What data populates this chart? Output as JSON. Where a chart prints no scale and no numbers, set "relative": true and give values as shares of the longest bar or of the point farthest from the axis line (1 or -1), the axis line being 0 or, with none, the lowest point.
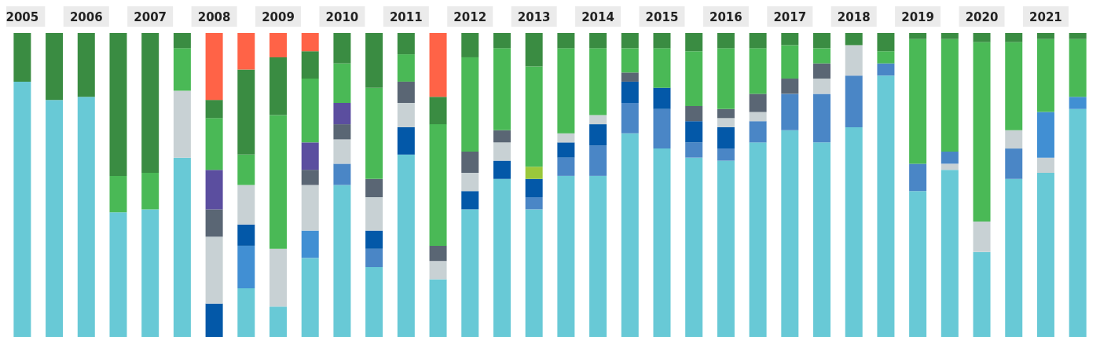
{
  "chart_data": {
    "type": "bar",
    "stacked": true,
    "relative": true,
    "categories": [
      "2005",
      null,
      "2006",
      null,
      "2007",
      null,
      "2008",
      null,
      "2009",
      null,
      "2010",
      null,
      "2011",
      null,
      "2012",
      null,
      "2013",
      null,
      "2014",
      null,
      "2015",
      null,
      "2016",
      null,
      "2017",
      null,
      "2018",
      null,
      "2019",
      null,
      "2020",
      null,
      "2021",
      null
    ],
    "series": [
      {
        "color": "#68c9d6",
        "values": [
          0.84,
          0.78,
          0.79,
          0.41,
          0.42,
          0.59,
          null,
          0.16,
          0.1,
          0.26,
          0.5,
          0.23,
          0.6,
          0.19,
          0.42,
          0.52,
          0.42,
          0.53,
          0.53,
          0.67,
          0.62,
          0.59,
          0.58,
          0.64,
          0.68,
          0.64,
          0.69,
          0.86,
          0.48,
          0.55,
          0.28,
          0.52,
          0.54,
          0.75
        ]
      },
      {
        "color": "#c8d1d4",
        "values": [
          null,
          null,
          null,
          null,
          null,
          null,
          null,
          null,
          null,
          null,
          null,
          null,
          null,
          null,
          null,
          null,
          null,
          null,
          null,
          null,
          null,
          null,
          null,
          null,
          null,
          null,
          null,
          null,
          null,
          0.02,
          null,
          null,
          0.05,
          null
        ]
      },
      {
        "color": "#418fd3",
        "values": [
          null,
          null,
          null,
          null,
          null,
          null,
          null,
          0.14,
          null,
          0.09,
          null,
          null,
          null,
          null,
          null,
          null,
          null,
          null,
          null,
          null,
          null,
          null,
          null,
          null,
          null,
          null,
          null,
          null,
          null,
          null,
          null,
          null,
          0.15,
          0.04
        ]
      },
      {
        "color": "#4a86c6",
        "values": [
          null,
          null,
          null,
          null,
          null,
          null,
          null,
          null,
          null,
          null,
          0.07,
          0.06,
          null,
          null,
          null,
          null,
          0.04,
          0.06,
          0.1,
          0.1,
          0.13,
          0.05,
          0.04,
          0.07,
          0.12,
          0.16,
          0.17,
          0.04,
          0.09,
          0.04,
          null,
          0.1,
          null,
          null
        ]
      },
      {
        "color": "#0358a8",
        "values": [
          null,
          null,
          null,
          null,
          null,
          null,
          0.11,
          0.07,
          null,
          null,
          null,
          0.06,
          0.09,
          null,
          0.06,
          0.06,
          0.06,
          0.05,
          0.07,
          0.07,
          0.07,
          0.07,
          0.07,
          null,
          null,
          null,
          null,
          null,
          null,
          null,
          null,
          null,
          null,
          null
        ]
      },
      {
        "color": "#c8d1d4",
        "values": [
          null,
          null,
          null,
          null,
          null,
          0.22,
          0.22,
          0.13,
          0.19,
          0.15,
          0.08,
          0.11,
          0.08,
          0.06,
          0.06,
          0.06,
          null,
          0.03,
          0.03,
          null,
          null,
          null,
          0.03,
          0.03,
          null,
          0.05,
          0.1,
          null,
          null,
          null,
          0.1,
          0.06,
          null,
          null
        ]
      },
      {
        "color": "#5a6674",
        "values": [
          null,
          null,
          null,
          null,
          null,
          null,
          0.09,
          null,
          null,
          0.05,
          0.05,
          0.06,
          0.07,
          0.05,
          0.07,
          0.04,
          null,
          null,
          null,
          0.03,
          null,
          0.05,
          0.03,
          0.06,
          0.05,
          0.05,
          null,
          null,
          null,
          null,
          null,
          null,
          null,
          null
        ]
      },
      {
        "color": "#5b4e9f",
        "values": [
          null,
          null,
          null,
          null,
          null,
          null,
          0.13,
          null,
          null,
          0.09,
          0.07,
          null,
          null,
          null,
          null,
          null,
          null,
          null,
          null,
          null,
          null,
          null,
          null,
          null,
          null,
          null,
          null,
          null,
          null,
          null,
          null,
          null,
          null,
          null
        ]
      },
      {
        "color": "#9ac83b",
        "values": [
          null,
          null,
          null,
          null,
          null,
          null,
          null,
          null,
          null,
          null,
          null,
          null,
          null,
          null,
          null,
          null,
          0.04,
          null,
          null,
          null,
          null,
          null,
          null,
          null,
          null,
          null,
          null,
          null,
          null,
          null,
          null,
          null,
          null,
          null
        ]
      },
      {
        "color": "#4ab956",
        "values": [
          null,
          null,
          null,
          0.12,
          0.12,
          0.14,
          0.17,
          0.1,
          0.44,
          0.21,
          0.13,
          0.3,
          0.09,
          0.4,
          0.31,
          0.27,
          0.33,
          0.28,
          0.22,
          0.08,
          0.13,
          0.18,
          0.2,
          0.15,
          0.11,
          0.05,
          null,
          0.04,
          0.41,
          0.37,
          0.59,
          0.29,
          0.24,
          0.19
        ]
      },
      {
        "color": "#3a8c42",
        "values": [
          0.16,
          0.22,
          0.21,
          0.47,
          0.46,
          0.05,
          0.06,
          0.28,
          0.19,
          0.09,
          0.1,
          0.18,
          0.07,
          0.09,
          0.08,
          0.05,
          0.11,
          0.05,
          0.05,
          0.05,
          0.05,
          0.06,
          0.05,
          0.05,
          0.04,
          0.05,
          0.04,
          0.06,
          0.02,
          0.02,
          0.03,
          0.03,
          0.02,
          0.02
        ]
      },
      {
        "color": "#ff6347",
        "values": [
          null,
          null,
          null,
          null,
          null,
          null,
          0.22,
          0.12,
          0.08,
          0.06,
          null,
          null,
          null,
          0.21,
          null,
          null,
          null,
          null,
          null,
          null,
          null,
          null,
          null,
          null,
          null,
          null,
          null,
          null,
          null,
          null,
          null,
          null,
          null,
          null
        ]
      }
    ]
  }
}
